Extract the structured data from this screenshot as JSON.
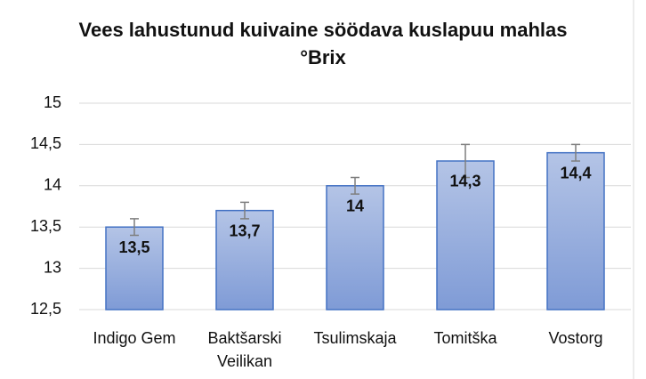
{
  "chart_data": {
    "type": "bar",
    "title": "Vees lahustunud kuivaine  söödava kuslapuu mahlas °Brix",
    "categories": [
      "Indigo Gem",
      "Baktšarski Veilikan",
      "Tsulimskaja",
      "Tomitška",
      "Vostorg"
    ],
    "values": [
      13.5,
      13.7,
      14,
      14.3,
      14.4
    ],
    "value_labels": [
      "13,5",
      "13,7",
      "14",
      "14,3",
      "14,4"
    ],
    "errors": [
      0.1,
      0.1,
      0.1,
      0.2,
      0.1
    ],
    "color": "#8faadc",
    "ylim": [
      12.5,
      15
    ],
    "yticks": [
      {
        "value": 12.5,
        "label": "12,5"
      },
      13,
      {
        "value": 13.5,
        "label": "13,5"
      },
      14,
      {
        "value": 14.5,
        "label": "14,5"
      },
      15
    ],
    "grid": true
  }
}
